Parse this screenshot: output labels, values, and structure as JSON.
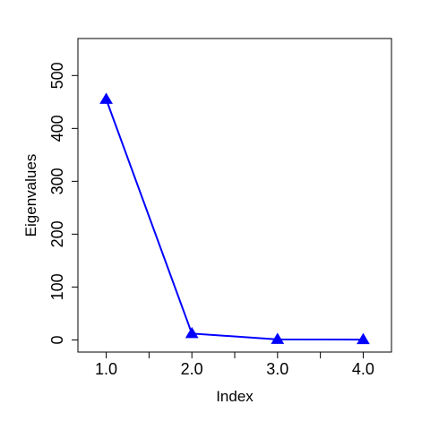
{
  "chart_data": {
    "type": "line",
    "title": "",
    "xlabel": "Index",
    "ylabel": "Eigenvalues",
    "x": [
      1,
      2,
      3,
      4
    ],
    "x_ticks": [
      1.0,
      1.5,
      2.0,
      2.5,
      3.0,
      3.5,
      4.0
    ],
    "x_tick_labels": [
      "1.0",
      "",
      "2.0",
      "",
      "3.0",
      "",
      "4.0"
    ],
    "y_ticks": [
      0,
      100,
      200,
      300,
      400,
      500
    ],
    "y_tick_labels": [
      "0",
      "100",
      "200",
      "300",
      "400",
      "500"
    ],
    "xlim": [
      0.67,
      4.33
    ],
    "ylim": [
      -23,
      570
    ],
    "grid": false,
    "legend": "none",
    "series": [
      {
        "values": [
          455,
          12,
          1,
          0.5
        ],
        "color": "#0000FF",
        "marker": "triangle"
      }
    ]
  }
}
